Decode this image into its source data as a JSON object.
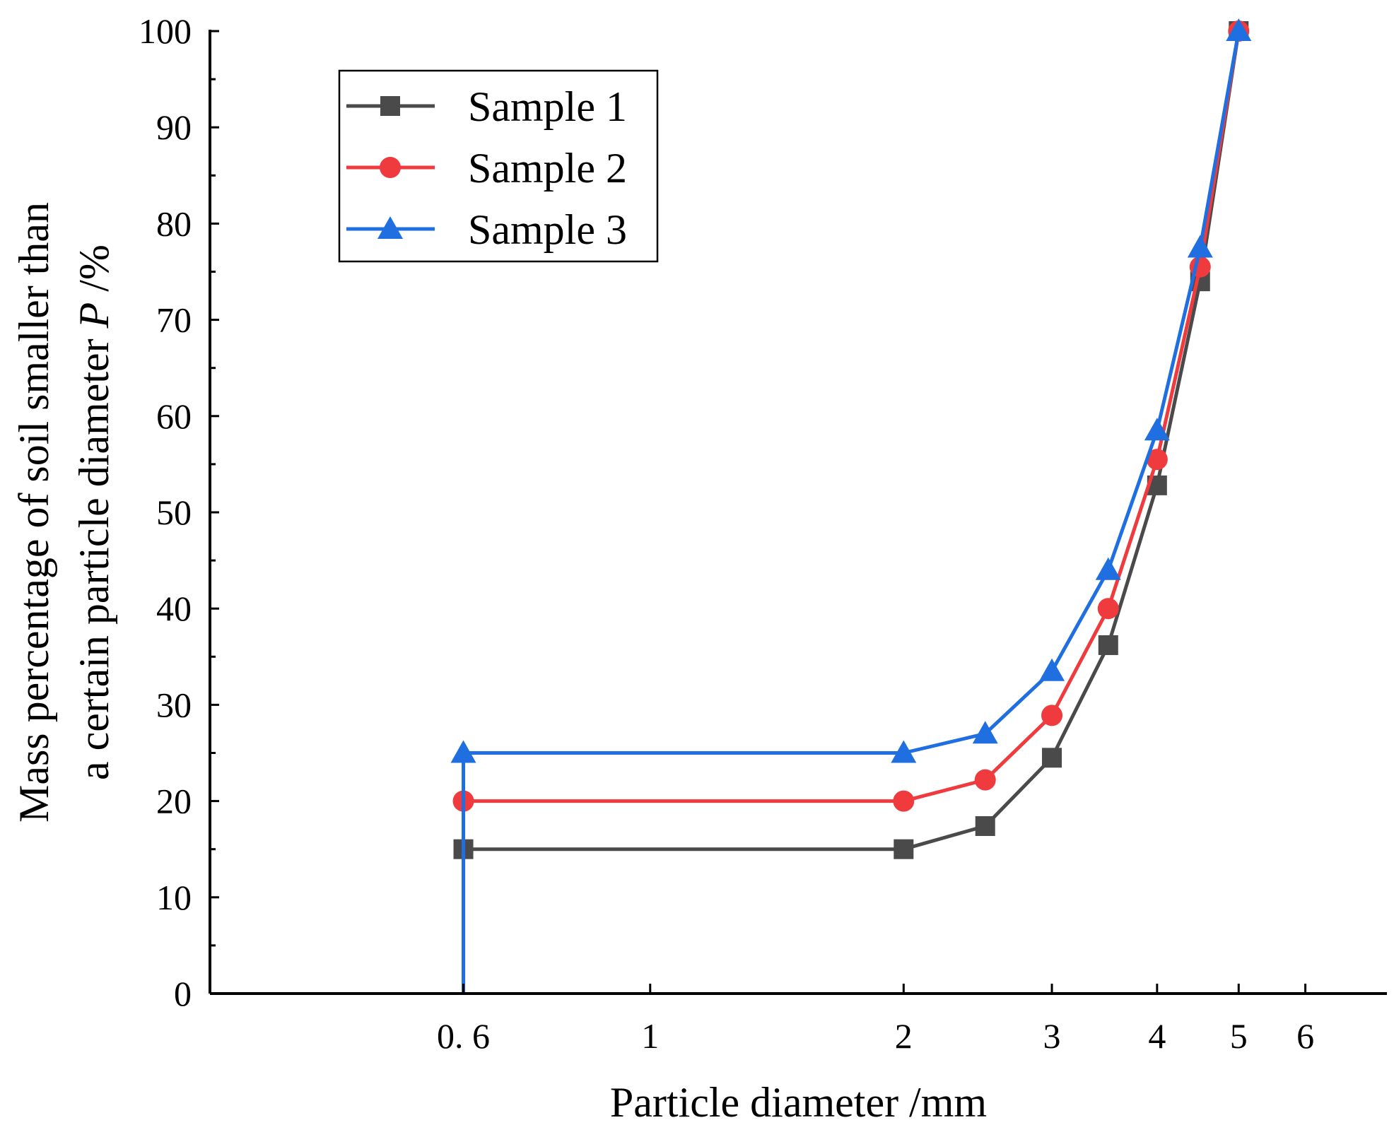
{
  "chart_data": {
    "type": "line",
    "title": "",
    "xlabel": "Particle diameter /mm",
    "ylabel_line1": "Mass percentage of soil smaller than",
    "ylabel_line2_prefix": "a certain particle diameter ",
    "ylabel_line2_var": "P",
    "ylabel_line2_suffix": " /%",
    "xscale": "log",
    "xlim": [
      0.3,
      7.5
    ],
    "ylim": [
      0,
      100
    ],
    "x_ticks": [
      {
        "value": 0.6,
        "label": "0. 6"
      },
      {
        "value": 1,
        "label": "1"
      },
      {
        "value": 2,
        "label": "2"
      },
      {
        "value": 3,
        "label": "3"
      },
      {
        "value": 4,
        "label": "4"
      },
      {
        "value": 5,
        "label": "5"
      },
      {
        "value": 6,
        "label": "6"
      }
    ],
    "y_ticks": [
      0,
      10,
      20,
      30,
      40,
      50,
      60,
      70,
      80,
      90,
      100
    ],
    "legend_position": "top-left",
    "series": [
      {
        "name": "Sample 1",
        "color": "#4a4a4a",
        "marker": "square",
        "x": [
          0.6,
          0.6,
          2,
          2.5,
          3,
          3.5,
          4,
          4.5,
          5
        ],
        "y": [
          0,
          15,
          15,
          17.4,
          24.5,
          36.2,
          52.8,
          74,
          100
        ]
      },
      {
        "name": "Sample 2",
        "color": "#ef3a3e",
        "marker": "circle",
        "x": [
          0.6,
          0.6,
          2,
          2.5,
          3,
          3.5,
          4,
          4.5,
          5
        ],
        "y": [
          0,
          20,
          20,
          22.2,
          28.9,
          40,
          55.5,
          75.5,
          100
        ]
      },
      {
        "name": "Sample 3",
        "color": "#1f6fe0",
        "marker": "triangle",
        "x": [
          0.6,
          0.6,
          2,
          2.5,
          3,
          3.5,
          4,
          4.5,
          5
        ],
        "y": [
          0,
          25,
          25,
          27,
          33.5,
          44,
          58.5,
          77.5,
          100
        ]
      }
    ]
  }
}
